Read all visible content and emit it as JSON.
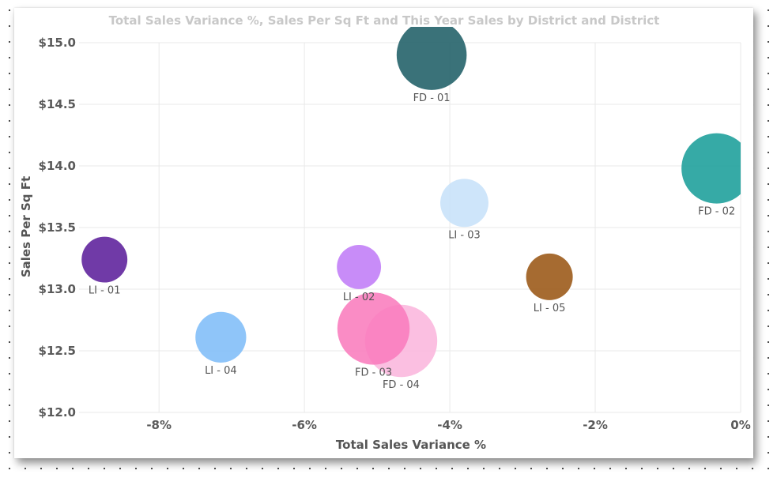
{
  "chart_data": {
    "type": "scatter",
    "title": "Total Sales Variance %, Sales Per Sq Ft and This Year Sales by District and District",
    "xlabel": "Total Sales Variance %",
    "ylabel": "Sales Per Sq Ft",
    "xlim": [
      -9.1,
      0
    ],
    "ylim": [
      12.0,
      15.0
    ],
    "x_ticks": [
      -8,
      -6,
      -4,
      -2,
      0
    ],
    "x_tick_labels": [
      "-8%",
      "-6%",
      "-4%",
      "-2%",
      "0%"
    ],
    "y_ticks": [
      12.0,
      12.5,
      13.0,
      13.5,
      14.0,
      14.5,
      15.0
    ],
    "y_tick_labels": [
      "$12.0",
      "$12.5",
      "$13.0",
      "$13.5",
      "$14.0",
      "$14.5",
      "$15.0"
    ],
    "grid": true,
    "size_measure": "This Year Sales",
    "points": [
      {
        "label": "FD - 01",
        "x": -4.25,
        "y": 14.9,
        "size": 3.04,
        "color": "#1f5f66"
      },
      {
        "label": "FD - 02",
        "x": -0.33,
        "y": 13.98,
        "size": 3.07,
        "color": "#1a9e9a"
      },
      {
        "label": "LI - 03",
        "x": -3.8,
        "y": 13.7,
        "size": 1.44,
        "color": "#c7e1f9"
      },
      {
        "label": "LI - 01",
        "x": -8.75,
        "y": 13.24,
        "size": 1.3,
        "color": "#5c1f9b"
      },
      {
        "label": "LI - 02",
        "x": -5.25,
        "y": 13.18,
        "size": 1.21,
        "color": "#c07cf7"
      },
      {
        "label": "FD - 04",
        "x": -4.67,
        "y": 12.58,
        "size": 3.24,
        "color": "#fbb6dd"
      },
      {
        "label": "LI - 05",
        "x": -2.63,
        "y": 13.1,
        "size": 1.35,
        "color": "#9a5615"
      },
      {
        "label": "LI - 04",
        "x": -7.15,
        "y": 12.61,
        "size": 1.6,
        "color": "#7fbdf8"
      },
      {
        "label": "FD - 03",
        "x": -5.05,
        "y": 12.68,
        "size": 3.24,
        "color": "#f97cbd"
      }
    ]
  }
}
